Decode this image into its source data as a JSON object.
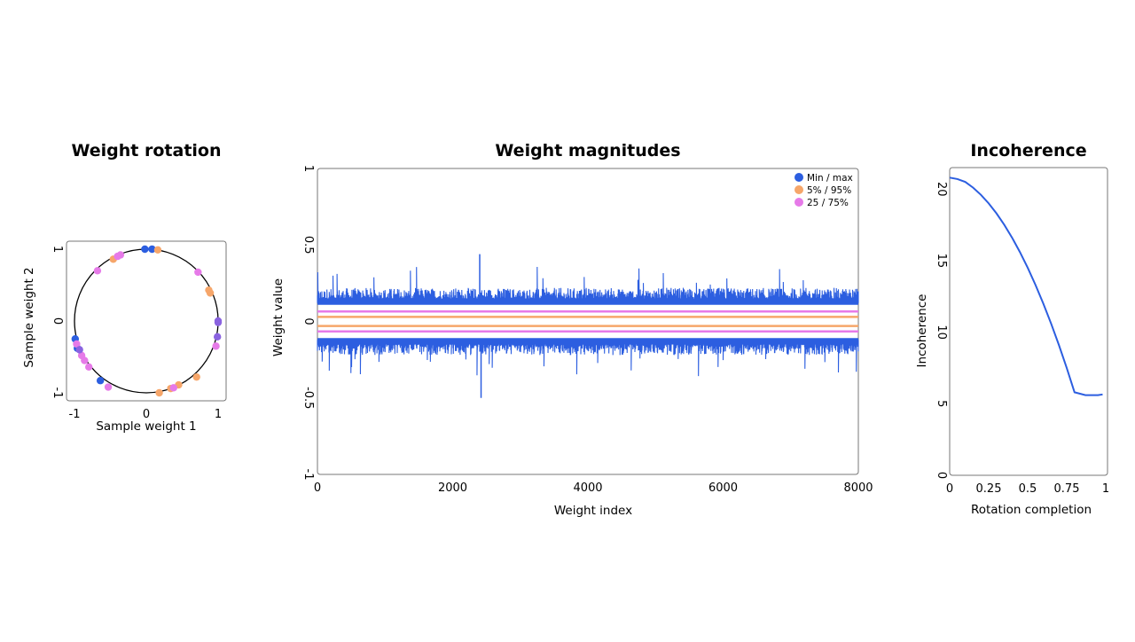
{
  "colors": {
    "minmax": "#2c5ee0",
    "p5_95": "#f6a66a",
    "p25_75": "#e67ae8",
    "circle_mixed": "#8a63e0",
    "frame": "#777777",
    "line": "#2c5ee0"
  },
  "chart_data": [
    {
      "type": "scatter",
      "title": "Weight rotation",
      "xlabel": "Sample weight 1",
      "ylabel": "Sample weight 2",
      "xlim": [
        -1.1,
        1.1
      ],
      "ylim": [
        -1.1,
        1.1
      ],
      "xticks": [
        {
          "v": -1,
          "label": "-1"
        },
        {
          "v": 0,
          "label": "0"
        },
        {
          "v": 1,
          "label": "1"
        }
      ],
      "yticks": [
        {
          "v": -1,
          "label": "-1"
        },
        {
          "v": 0,
          "label": "0"
        },
        {
          "v": 1,
          "label": "1"
        }
      ],
      "unit_circle": true,
      "series": [
        {
          "key": "minmax",
          "points": [
            [
              -0.02,
              1.0
            ],
            [
              0.08,
              1.0
            ],
            [
              -0.99,
              -0.25
            ],
            [
              -0.96,
              -0.38
            ],
            [
              -0.64,
              -0.83
            ]
          ]
        },
        {
          "key": "p5_95",
          "points": [
            [
              0.16,
              0.99
            ],
            [
              -0.46,
              0.86
            ],
            [
              0.87,
              0.43
            ],
            [
              0.89,
              0.39
            ],
            [
              0.18,
              -1.0
            ],
            [
              0.34,
              -0.94
            ],
            [
              0.45,
              -0.89
            ],
            [
              0.7,
              -0.78
            ]
          ]
        },
        {
          "key": "p25_75",
          "points": [
            [
              -0.4,
              0.9
            ],
            [
              -0.36,
              0.92
            ],
            [
              -0.68,
              0.7
            ],
            [
              0.72,
              0.68
            ],
            [
              0.97,
              -0.35
            ],
            [
              -0.97,
              -0.32
            ],
            [
              -0.9,
              -0.48
            ],
            [
              -0.86,
              -0.55
            ],
            [
              -0.8,
              -0.64
            ],
            [
              -0.53,
              -0.92
            ],
            [
              0.38,
              -0.93
            ]
          ]
        },
        {
          "key": "circle_mixed",
          "points": [
            [
              1.0,
              0.0
            ],
            [
              1.0,
              -0.02
            ],
            [
              0.99,
              -0.22
            ],
            [
              -0.93,
              -0.4
            ]
          ]
        }
      ]
    },
    {
      "type": "line",
      "title": "Weight magnitudes",
      "xlabel": "Weight index",
      "ylabel": "Weight value",
      "xlim": [
        0,
        8000
      ],
      "ylim": [
        -1,
        1
      ],
      "xticks": [
        {
          "v": 0,
          "label": "0"
        },
        {
          "v": 2000,
          "label": "2000"
        },
        {
          "v": 4000,
          "label": "4000"
        },
        {
          "v": 6000,
          "label": "6000"
        },
        {
          "v": 8000,
          "label": "8000"
        }
      ],
      "yticks": [
        {
          "v": -1,
          "label": "-1"
        },
        {
          "v": -0.5,
          "label": "-0.5"
        },
        {
          "v": 0,
          "label": "0"
        },
        {
          "v": 0.5,
          "label": "0.5"
        },
        {
          "v": 1,
          "label": "1"
        }
      ],
      "legend_position": "top-right",
      "series": [
        {
          "key": "minmax",
          "name": "Min / max",
          "upper_base": 0.12,
          "upper_peak": 0.44,
          "lower_base": -0.12,
          "lower_peak": -0.5
        },
        {
          "key": "p5_95",
          "name": "5% / 95%",
          "upper": 0.03,
          "lower": -0.03
        },
        {
          "key": "p25_75",
          "name": "25 / 75%",
          "upper": 0.065,
          "lower": -0.065
        }
      ]
    },
    {
      "type": "line",
      "title": "Incoherence",
      "xlabel": "Rotation completion",
      "ylabel": "Incoherence",
      "xlim": [
        0,
        1
      ],
      "ylim": [
        0,
        21.5
      ],
      "xticks": [
        {
          "v": 0,
          "label": "0"
        },
        {
          "v": 0.25,
          "label": "0.25"
        },
        {
          "v": 0.5,
          "label": "0.5"
        },
        {
          "v": 0.75,
          "label": "0.75"
        },
        {
          "v": 1,
          "label": "1"
        }
      ],
      "yticks": [
        {
          "v": 0,
          "label": "0"
        },
        {
          "v": 5,
          "label": "5"
        },
        {
          "v": 10,
          "label": "10"
        },
        {
          "v": 15,
          "label": "15"
        },
        {
          "v": 20,
          "label": "20"
        }
      ],
      "series": [
        {
          "key": "line",
          "x": [
            0,
            0.05,
            0.1,
            0.15,
            0.2,
            0.25,
            0.3,
            0.35,
            0.4,
            0.45,
            0.5,
            0.55,
            0.6,
            0.65,
            0.7,
            0.75,
            0.8,
            0.87,
            0.9,
            0.95,
            0.98
          ],
          "y": [
            20.8,
            20.7,
            20.5,
            20.1,
            19.6,
            19.0,
            18.3,
            17.5,
            16.6,
            15.6,
            14.5,
            13.3,
            12.0,
            10.6,
            9.1,
            7.5,
            5.8,
            5.6,
            5.6,
            5.6,
            5.65
          ]
        }
      ]
    }
  ]
}
